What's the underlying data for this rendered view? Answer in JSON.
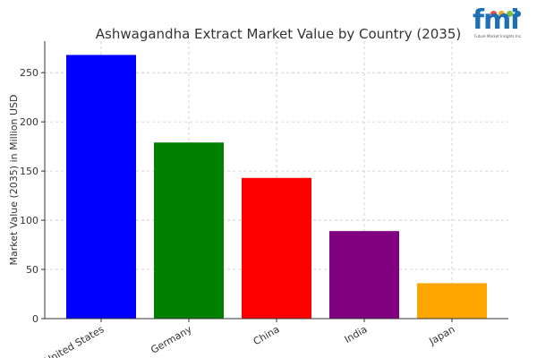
{
  "logo": {
    "mark": "fmi",
    "tagline": "Future Market Insights Inc.",
    "dot_colors": [
      "#e94b3c",
      "#f5a623",
      "#7cbf3f",
      "#1f6fb5"
    ]
  },
  "chart_data": {
    "type": "bar",
    "title": "Ashwagandha Extract Market Value by Country (2035)",
    "xlabel": "",
    "ylabel": "Market Value (2035) in Million USD",
    "categories": [
      "United States",
      "Germany",
      "China",
      "India",
      "Japan"
    ],
    "values": [
      268,
      179,
      143,
      89,
      36
    ],
    "colors": [
      "#0000ff",
      "#008000",
      "#ff0000",
      "#800080",
      "#ffa500"
    ],
    "ylim": [
      0,
      282
    ],
    "yticks": [
      0,
      50,
      100,
      150,
      200,
      250
    ],
    "grid": true,
    "grid_style": "dashed",
    "legend": "none"
  }
}
